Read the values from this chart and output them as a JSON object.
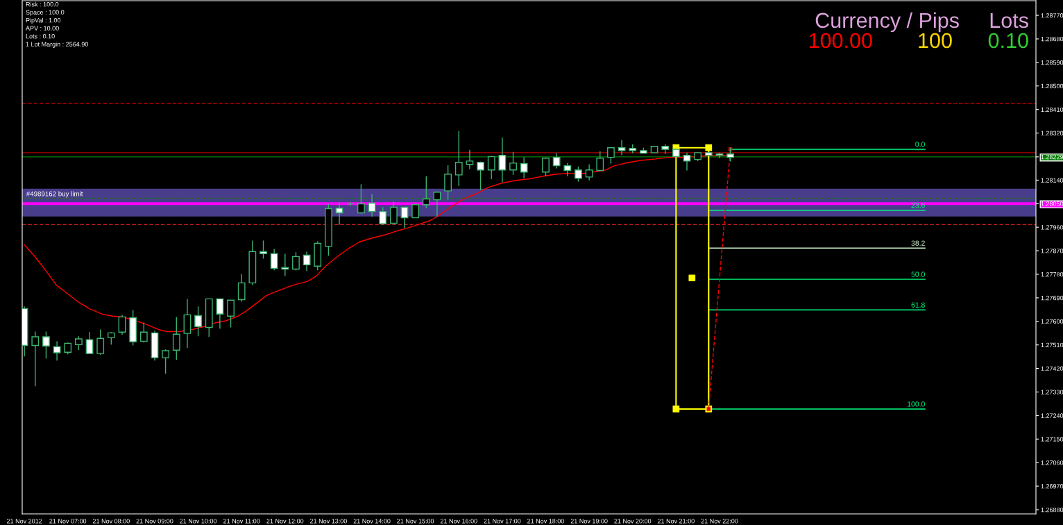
{
  "chart_data": {
    "type": "candlestick",
    "xlim": [
      "2012-11-21T05:57",
      "2012-11-22T05:17"
    ],
    "ylim": [
      1.26864,
      1.28826
    ],
    "xticks": [
      {
        "value": "2012-11-21T06:00",
        "label": "21 Nov 2012"
      },
      {
        "value": "2012-11-21T07:00",
        "label": "21 Nov 07:00"
      },
      {
        "value": "2012-11-21T08:00",
        "label": "21 Nov 08:00"
      },
      {
        "value": "2012-11-21T09:00",
        "label": "21 Nov 09:00"
      },
      {
        "value": "2012-11-21T10:00",
        "label": "21 Nov 10:00"
      },
      {
        "value": "2012-11-21T11:00",
        "label": "21 Nov 11:00"
      },
      {
        "value": "2012-11-21T12:00",
        "label": "21 Nov 12:00"
      },
      {
        "value": "2012-11-21T13:00",
        "label": "21 Nov 13:00"
      },
      {
        "value": "2012-11-21T14:00",
        "label": "21 Nov 14:00"
      },
      {
        "value": "2012-11-21T15:00",
        "label": "21 Nov 15:00"
      },
      {
        "value": "2012-11-21T16:00",
        "label": "21 Nov 16:00"
      },
      {
        "value": "2012-11-21T17:00",
        "label": "21 Nov 17:00"
      },
      {
        "value": "2012-11-21T18:00",
        "label": "21 Nov 18:00"
      },
      {
        "value": "2012-11-21T19:00",
        "label": "21 Nov 19:00"
      },
      {
        "value": "2012-11-21T20:00",
        "label": "21 Nov 20:00"
      },
      {
        "value": "2012-11-21T21:00",
        "label": "21 Nov 21:00"
      },
      {
        "value": "2012-11-21T22:00",
        "label": "21 Nov 22:00"
      }
    ],
    "yticks": [
      {
        "value": 1.2877,
        "label": "1.28770"
      },
      {
        "value": 1.2868,
        "label": "1.28680"
      },
      {
        "value": 1.2859,
        "label": "1.28590"
      },
      {
        "value": 1.285,
        "label": "1.28500"
      },
      {
        "value": 1.2841,
        "label": "1.28410"
      },
      {
        "value": 1.2832,
        "label": "1.28320"
      },
      {
        "value": 1.28229,
        "label": "1.28229"
      },
      {
        "value": 1.2814,
        "label": "1.28140"
      },
      {
        "value": 1.2805,
        "label": "1.28050"
      },
      {
        "value": 1.2796,
        "label": "1.27960"
      },
      {
        "value": 1.2787,
        "label": "1.27870"
      },
      {
        "value": 1.2778,
        "label": "1.27780"
      },
      {
        "value": 1.2769,
        "label": "1.27690"
      },
      {
        "value": 1.276,
        "label": "1.27600"
      },
      {
        "value": 1.2751,
        "label": "1.27510"
      },
      {
        "value": 1.2742,
        "label": "1.27420"
      },
      {
        "value": 1.2733,
        "label": "1.27330"
      },
      {
        "value": 1.2724,
        "label": "1.27240"
      },
      {
        "value": 1.2715,
        "label": "1.27150"
      },
      {
        "value": 1.2706,
        "label": "1.27060"
      },
      {
        "value": 1.2697,
        "label": "1.26970"
      },
      {
        "value": 1.2688,
        "label": "1.26880"
      }
    ],
    "ref_lines": [
      {
        "axis": "y",
        "value": 1.28434,
        "color": "#e00000",
        "line_style": "dashed"
      },
      {
        "axis": "y",
        "value": 1.28245,
        "color": "#b00000",
        "line_style": "solid"
      },
      {
        "axis": "y",
        "value": 1.28229,
        "color": "#008000",
        "line_style": "solid"
      },
      {
        "axis": "y",
        "value": 1.28071,
        "color": "#207020",
        "line_style": "dashed"
      },
      {
        "axis": "y",
        "value": 1.2805,
        "color": "#ff00ff",
        "line_style": "solid",
        "label": "#4989162 buy limit"
      },
      {
        "axis": "y",
        "value": 1.2797,
        "color": "#c02020",
        "line_style": "dashed"
      }
    ],
    "bands": [
      {
        "axis": "y",
        "from": 1.28001,
        "to": 1.28107,
        "color": "#483d8b"
      }
    ],
    "color": "#3cb371",
    "x": [
      "2012-11-21T06:00",
      "2012-11-21T06:15",
      "2012-11-21T06:30",
      "2012-11-21T06:45",
      "2012-11-21T07:00",
      "2012-11-21T07:15",
      "2012-11-21T07:30",
      "2012-11-21T07:45",
      "2012-11-21T08:00",
      "2012-11-21T08:15",
      "2012-11-21T08:30",
      "2012-11-21T08:45",
      "2012-11-21T09:00",
      "2012-11-21T09:15",
      "2012-11-21T09:30",
      "2012-11-21T09:45",
      "2012-11-21T10:00",
      "2012-11-21T10:15",
      "2012-11-21T10:30",
      "2012-11-21T10:45",
      "2012-11-21T11:00",
      "2012-11-21T11:15",
      "2012-11-21T11:30",
      "2012-11-21T11:45",
      "2012-11-21T12:00",
      "2012-11-21T12:15",
      "2012-11-21T12:30",
      "2012-11-21T12:45",
      "2012-11-21T13:00",
      "2012-11-21T13:15",
      "2012-11-21T13:30",
      "2012-11-21T13:45",
      "2012-11-21T14:00",
      "2012-11-21T14:15",
      "2012-11-21T14:30",
      "2012-11-21T14:45",
      "2012-11-21T15:00",
      "2012-11-21T15:15",
      "2012-11-21T15:30",
      "2012-11-21T15:45",
      "2012-11-21T16:00",
      "2012-11-21T16:15",
      "2012-11-21T16:30",
      "2012-11-21T16:45",
      "2012-11-21T17:00",
      "2012-11-21T17:15",
      "2012-11-21T17:30",
      "2012-11-21T18:00",
      "2012-11-21T18:15",
      "2012-11-21T18:30",
      "2012-11-21T18:45",
      "2012-11-21T19:00",
      "2012-11-21T19:15",
      "2012-11-21T19:30",
      "2012-11-21T19:45",
      "2012-11-21T20:00",
      "2012-11-21T20:15",
      "2012-11-21T20:30",
      "2012-11-21T20:45",
      "2012-11-21T21:00",
      "2012-11-21T21:15",
      "2012-11-21T21:30",
      "2012-11-21T21:45",
      "2012-11-21T22:00",
      "2012-11-21T22:15"
    ],
    "ohlc": [
      [
        1.27649,
        1.27657,
        1.27466,
        1.27508
      ],
      [
        1.27508,
        1.27561,
        1.27352,
        1.27541
      ],
      [
        1.27541,
        1.27561,
        1.27458,
        1.27506
      ],
      [
        1.27503,
        1.27524,
        1.2745,
        1.2748
      ],
      [
        1.27482,
        1.27519,
        1.27474,
        1.27516
      ],
      [
        1.27511,
        1.27543,
        1.2749,
        1.27533
      ],
      [
        1.2753,
        1.27559,
        1.27477,
        1.27477
      ],
      [
        1.27477,
        1.27569,
        1.27471,
        1.27535
      ],
      [
        1.27538,
        1.27559,
        1.27511,
        1.27556
      ],
      [
        1.27559,
        1.27625,
        1.27549,
        1.27617
      ],
      [
        1.27614,
        1.27644,
        1.27508,
        1.27522
      ],
      [
        1.27524,
        1.27596,
        1.27519,
        1.27559
      ],
      [
        1.27556,
        1.27564,
        1.2745,
        1.27461
      ],
      [
        1.27461,
        1.27493,
        1.274,
        1.27488
      ],
      [
        1.2749,
        1.27617,
        1.27453,
        1.27551
      ],
      [
        1.27554,
        1.27686,
        1.27498,
        1.27625
      ],
      [
        1.27622,
        1.27657,
        1.27543,
        1.2758
      ],
      [
        1.27577,
        1.27686,
        1.27541,
        1.27686
      ],
      [
        1.27686,
        1.27686,
        1.27572,
        1.27628
      ],
      [
        1.2762,
        1.27681,
        1.27577,
        1.27681
      ],
      [
        1.27683,
        1.27781,
        1.27675,
        1.27747
      ],
      [
        1.27747,
        1.27909,
        1.27739,
        1.27867
      ],
      [
        1.27867,
        1.27909,
        1.2784,
        1.27859
      ],
      [
        1.27859,
        1.27877,
        1.27795,
        1.27803
      ],
      [
        1.27806,
        1.27859,
        1.27773,
        1.278
      ],
      [
        1.278,
        1.27864,
        1.27795,
        1.27848
      ],
      [
        1.27853,
        1.27867,
        1.27792,
        1.27816
      ],
      [
        1.27811,
        1.27906,
        1.27795,
        1.27898
      ],
      [
        1.27887,
        1.28049,
        1.27851,
        1.28031
      ],
      [
        1.28033,
        1.28054,
        1.2797,
        1.28015
      ],
      [
        1.28049,
        1.28057,
        1.28041,
        1.28049
      ],
      [
        1.28015,
        1.28124,
        1.28012,
        1.28049
      ],
      [
        1.28052,
        1.28086,
        1.28001,
        1.2802
      ],
      [
        1.2802,
        1.28036,
        1.2797,
        1.27973
      ],
      [
        1.27975,
        1.28057,
        1.27973,
        1.28036
      ],
      [
        1.28036,
        1.28036,
        1.27957,
        1.27996
      ],
      [
        1.27996,
        1.28046,
        1.27996,
        1.28046
      ],
      [
        1.28046,
        1.28155,
        1.28033,
        1.28068
      ],
      [
        1.28065,
        1.28097,
        1.28001,
        1.28094
      ],
      [
        1.28099,
        1.28197,
        1.28065,
        1.28163
      ],
      [
        1.2816,
        1.28328,
        1.28118,
        1.28208
      ],
      [
        1.282,
        1.28256,
        1.28182,
        1.28213
      ],
      [
        1.28208,
        1.28211,
        1.28102,
        1.28179
      ],
      [
        1.28179,
        1.28232,
        1.28144,
        1.2823
      ],
      [
        1.28235,
        1.28302,
        1.28132,
        1.28179
      ],
      [
        1.28179,
        1.28248,
        1.2816,
        1.28205
      ],
      [
        1.28203,
        1.28227,
        1.28147,
        1.28171
      ],
      [
        1.28171,
        1.28227,
        1.28155,
        1.28224
      ],
      [
        1.28227,
        1.28243,
        1.28185,
        1.28195
      ],
      [
        1.28195,
        1.28205,
        1.28155,
        1.28177
      ],
      [
        1.28179,
        1.28192,
        1.28134,
        1.28147
      ],
      [
        1.28152,
        1.282,
        1.28139,
        1.28179
      ],
      [
        1.28177,
        1.2825,
        1.28177,
        1.28224
      ],
      [
        1.28227,
        1.28266,
        1.28203,
        1.28264
      ],
      [
        1.28264,
        1.28293,
        1.28235,
        1.28253
      ],
      [
        1.28261,
        1.28277,
        1.28243,
        1.28253
      ],
      [
        1.28253,
        1.28264,
        1.28243,
        1.28243
      ],
      [
        1.28245,
        1.28269,
        1.28243,
        1.28269
      ],
      [
        1.28269,
        1.28277,
        1.2824,
        1.28258
      ],
      [
        1.28258,
        1.28261,
        1.28227,
        1.2823
      ],
      [
        1.28235,
        1.28245,
        1.28177,
        1.28213
      ],
      [
        1.28219,
        1.28245,
        1.28213,
        1.28245
      ],
      [
        1.28245,
        1.28248,
        1.28232,
        1.28235
      ],
      [
        1.2824,
        1.28245,
        1.28224,
        1.28235
      ],
      [
        1.2824,
        1.28264,
        1.28211,
        1.28227
      ]
    ],
    "series": [
      {
        "type": "line",
        "color": "#ff0000",
        "x": [
          "2012-11-21T06:00",
          "2012-11-21T06:13",
          "2012-11-21T06:28",
          "2012-11-21T06:44",
          "2012-11-21T07:00",
          "2012-11-21T07:15",
          "2012-11-21T07:31",
          "2012-11-21T07:47",
          "2012-11-21T08:02",
          "2012-11-21T08:16",
          "2012-11-21T08:34",
          "2012-11-21T08:49",
          "2012-11-21T09:05",
          "2012-11-21T09:17",
          "2012-11-21T09:33",
          "2012-11-21T09:52",
          "2012-11-21T10:08",
          "2012-11-21T10:23",
          "2012-11-21T10:38",
          "2012-11-21T10:55",
          "2012-11-21T11:07",
          "2012-11-21T11:35",
          "2012-11-21T11:53",
          "2012-11-21T12:12",
          "2012-11-21T12:31",
          "2012-11-21T12:43",
          "2012-11-21T12:56",
          "2012-11-21T13:11",
          "2012-11-21T13:27",
          "2012-11-21T13:43",
          "2012-11-21T14:02",
          "2012-11-21T14:17",
          "2012-11-21T14:35",
          "2012-11-21T14:49",
          "2012-11-21T15:04",
          "2012-11-21T15:20",
          "2012-11-21T15:32",
          "2012-11-21T15:48",
          "2012-11-21T16:00",
          "2012-11-21T16:13",
          "2012-11-21T16:23",
          "2012-11-21T16:41",
          "2012-11-21T17:00",
          "2012-11-21T17:19",
          "2012-11-21T17:38",
          "2012-11-21T17:56",
          "2012-11-21T18:15",
          "2012-11-21T18:34",
          "2012-11-21T18:53",
          "2012-11-21T19:05",
          "2012-11-21T19:21",
          "2012-11-21T19:35",
          "2012-11-21T19:55",
          "2012-11-21T20:13",
          "2012-11-21T20:32",
          "2012-11-21T20:50",
          "2012-11-21T21:10",
          "2012-11-21T21:38",
          "2012-11-21T22:12"
        ],
        "values": [
          1.27893,
          1.27853,
          1.278,
          1.27739,
          1.27705,
          1.27673,
          1.27647,
          1.27628,
          1.2762,
          1.27617,
          1.27602,
          1.27588,
          1.27569,
          1.27561,
          1.27561,
          1.27569,
          1.2758,
          1.27594,
          1.27602,
          1.2762,
          1.27641,
          1.277,
          1.2772,
          1.27739,
          1.27753,
          1.27773,
          1.27811,
          1.27845,
          1.27877,
          1.27904,
          1.2792,
          1.2793,
          1.27946,
          1.27957,
          1.2797,
          1.27985,
          1.28004,
          1.28036,
          1.28057,
          1.28076,
          1.28086,
          1.28113,
          1.28129,
          1.28139,
          1.28145,
          1.28155,
          1.28163,
          1.28166,
          1.28166,
          1.28171,
          1.28177,
          1.28195,
          1.28208,
          1.28216,
          1.28221,
          1.28227,
          1.28227,
          1.28232,
          1.28235
        ]
      },
      {
        "type": "line",
        "name": "0.0",
        "color": "#00ff7f",
        "x": [
          "2012-11-21T22:15",
          "2012-11-22T02:44"
        ],
        "values": [
          1.28258,
          1.28258
        ]
      },
      {
        "type": "line",
        "name": "23.6",
        "color": "#00ff7f",
        "x": [
          "2012-11-21T21:45",
          "2012-11-22T02:44"
        ],
        "values": [
          1.28025,
          1.28025
        ]
      },
      {
        "type": "line",
        "name": "38.2",
        "color": "#c8f0c8",
        "x": [
          "2012-11-21T21:45",
          "2012-11-22T02:44"
        ],
        "values": [
          1.2788,
          1.2788
        ]
      },
      {
        "type": "line",
        "name": "50.0",
        "color": "#00ff7f",
        "x": [
          "2012-11-21T21:45",
          "2012-11-22T02:44"
        ],
        "values": [
          1.27761,
          1.27761
        ]
      },
      {
        "type": "line",
        "name": "61.8",
        "color": "#00ff7f",
        "x": [
          "2012-11-21T21:45",
          "2012-11-22T02:44"
        ],
        "values": [
          1.27644,
          1.27644
        ]
      },
      {
        "type": "line",
        "name": "100.0",
        "color": "#00ff7f",
        "x": [
          "2012-11-21T21:45",
          "2012-11-22T02:44"
        ],
        "values": [
          1.27265,
          1.27265
        ]
      },
      {
        "type": "line",
        "color": "#ffff00",
        "marker": "square",
        "x": [
          "2012-11-21T21:00",
          "2012-11-21T21:45"
        ],
        "values": [
          1.28264,
          1.28264
        ]
      },
      {
        "type": "line",
        "color": "#ffff00",
        "marker": "square",
        "x": [
          "2012-11-21T21:00",
          "2012-11-21T21:45"
        ],
        "values": [
          1.27265,
          1.27265
        ]
      },
      {
        "type": "line",
        "color": "#ffff00",
        "x": [
          "2012-11-21T21:00",
          "2012-11-21T21:00"
        ],
        "values": [
          1.28264,
          1.27265
        ]
      },
      {
        "type": "line",
        "color": "#ffff00",
        "x": [
          "2012-11-21T21:45",
          "2012-11-21T21:45"
        ],
        "values": [
          1.28264,
          1.27265
        ]
      },
      {
        "type": "line",
        "color": "#ff0000",
        "line_style": "dashed",
        "marker": "square",
        "x": [
          "2012-11-21T21:45",
          "2012-11-21T22:15"
        ],
        "values": [
          1.27265,
          1.28258
        ]
      },
      {
        "type": "scatter",
        "color": "#ffff00",
        "marker": "square",
        "x": [
          "2012-11-21T21:22"
        ],
        "values": [
          1.27766
        ]
      }
    ],
    "annotations": [
      "Risk : 100.0",
      "Space : 100.0",
      "PipVal : 1.00",
      "APV : 10.00",
      "Lots : 0.10",
      "1 Lot Margin : 2564.90",
      "Currency / Pips",
      "Lots",
      "100.00",
      "100",
      "0.10"
    ]
  }
}
